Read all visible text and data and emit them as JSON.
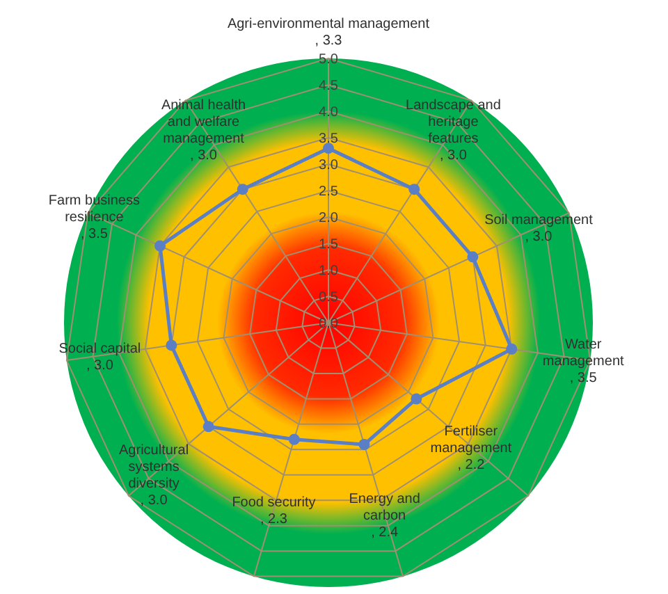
{
  "chart_data": {
    "type": "radar",
    "categories": [
      "Agri-environmental management",
      "Landscape and heritage features",
      "Soil management",
      "Water management",
      "Fertiliser management",
      "Energy and carbon",
      "Food security",
      "Agricultural systems diversity",
      "Social capital",
      "Farm business resilience",
      "Animal health and welfare management"
    ],
    "series": [
      {
        "color": "#5b7fc4",
        "values": [
          3.3,
          3.0,
          3.0,
          3.5,
          2.2,
          2.4,
          2.3,
          3.0,
          3.0,
          3.5,
          3.0
        ]
      }
    ],
    "ylim": [
      0,
      5
    ],
    "yticks": [
      {
        "value": 0,
        "label": "0.0"
      },
      {
        "value": 0.5,
        "label": "0.5"
      },
      {
        "value": 1,
        "label": "1.0"
      },
      {
        "value": 1.5,
        "label": "1.5"
      },
      {
        "value": 2,
        "label": "2.0"
      },
      {
        "value": 2.5,
        "label": "2.5"
      },
      {
        "value": 3,
        "label": "3.0"
      },
      {
        "value": 3.5,
        "label": "3.5"
      },
      {
        "value": 4,
        "label": "4.0"
      },
      {
        "value": 4.5,
        "label": "4.5"
      },
      {
        "value": 5,
        "label": "5.0"
      }
    ],
    "grid": true,
    "marker": "circle",
    "value_labels": [
      ", 3.3",
      ", 3.0",
      ", 3.0",
      ", 3.5",
      ", 2.2",
      ", 2.4",
      ", 2.3",
      ", 3.0",
      ", 3.0",
      ", 3.5",
      ", 3.0"
    ]
  }
}
